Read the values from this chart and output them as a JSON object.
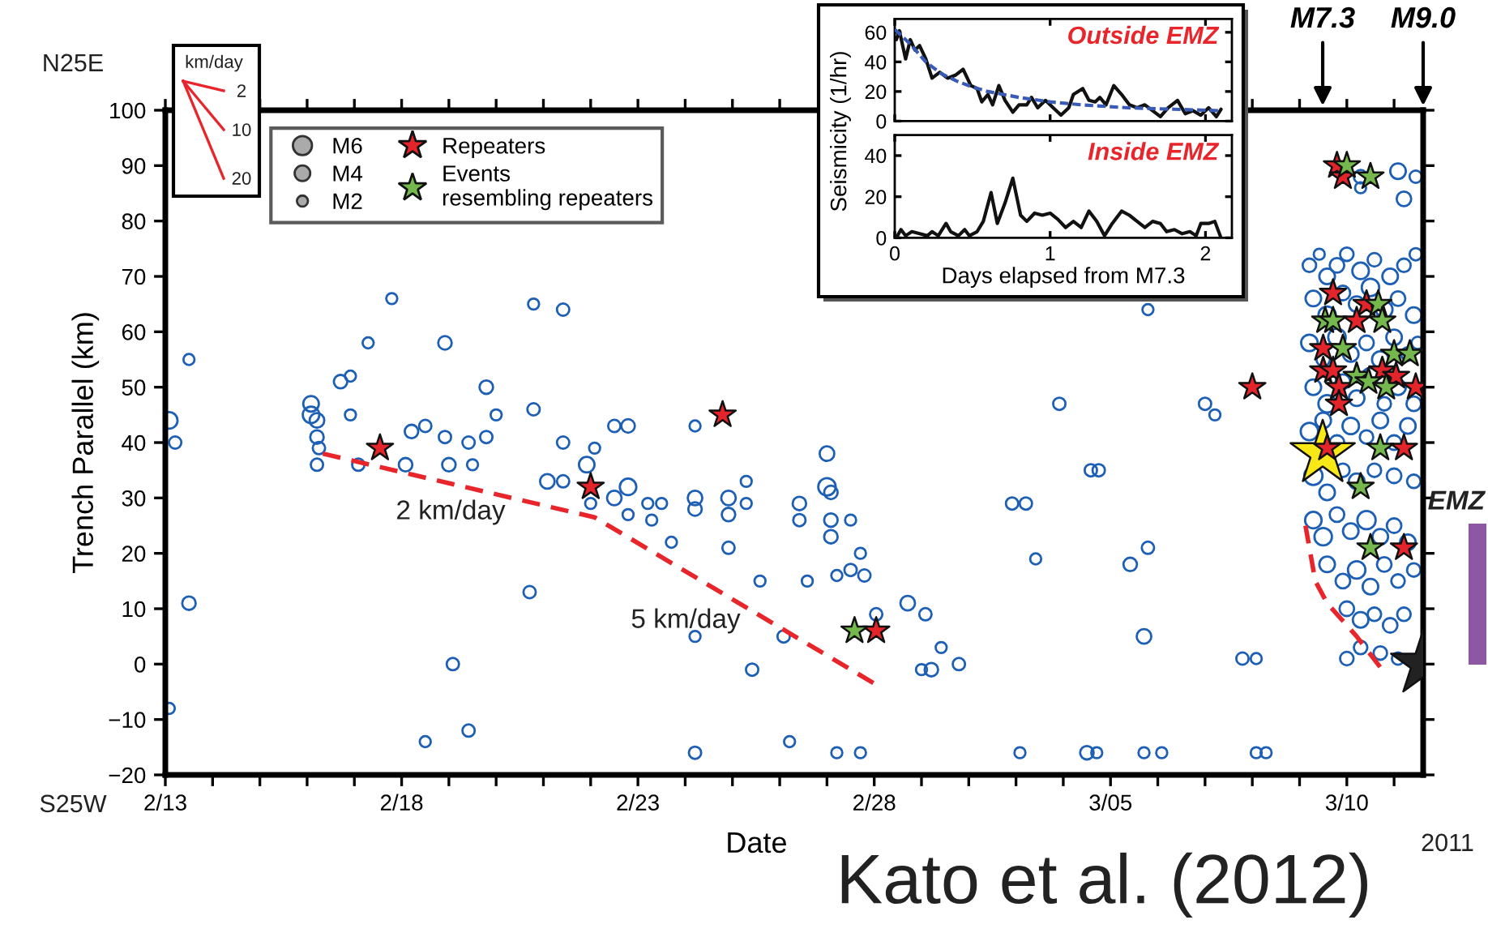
{
  "chart_data": [
    {
      "type": "scatter",
      "xlabel": "Date",
      "ylabel": "Trench Parallel (km)",
      "legend": "top left",
      "xlim": [
        "2011-02-13T00:00",
        "2011-03-11T14:46"
      ],
      "xticks": [
        {
          "value": "2011-02-13",
          "label": "2/13"
        },
        {
          "value": "2011-02-14",
          "label": null
        },
        {
          "value": "2011-02-15",
          "label": null
        },
        {
          "value": "2011-02-16",
          "label": null
        },
        {
          "value": "2011-02-17",
          "label": null
        },
        {
          "value": "2011-02-18",
          "label": "2/18"
        },
        {
          "value": "2011-02-19",
          "label": null
        },
        {
          "value": "2011-02-20",
          "label": null
        },
        {
          "value": "2011-02-21",
          "label": null
        },
        {
          "value": "2011-02-22",
          "label": null
        },
        {
          "value": "2011-02-23",
          "label": "2/23"
        },
        {
          "value": "2011-02-24",
          "label": null
        },
        {
          "value": "2011-02-25",
          "label": null
        },
        {
          "value": "2011-02-26",
          "label": null
        },
        {
          "value": "2011-02-27",
          "label": null
        },
        {
          "value": "2011-02-28",
          "label": "2/28"
        },
        {
          "value": "2011-03-01",
          "label": null
        },
        {
          "value": "2011-03-02",
          "label": null
        },
        {
          "value": "2011-03-03",
          "label": null
        },
        {
          "value": "2011-03-04",
          "label": null
        },
        {
          "value": "2011-03-05",
          "label": "3/05"
        },
        {
          "value": "2011-03-06",
          "label": null
        },
        {
          "value": "2011-03-07",
          "label": null
        },
        {
          "value": "2011-03-08",
          "label": null
        },
        {
          "value": "2011-03-09",
          "label": null
        },
        {
          "value": "2011-03-10",
          "label": "3/10"
        },
        {
          "value": "2011-03-11",
          "label": null
        }
      ],
      "ylim": [
        -20,
        100
      ],
      "yticks": [
        {
          "value": -20,
          "label": "−20"
        },
        {
          "value": -10,
          "label": "−10"
        },
        0,
        10,
        20,
        30,
        40,
        50,
        60,
        70,
        80,
        90,
        100
      ],
      "size_legend": [
        {
          "value": 6,
          "label": "M6"
        },
        {
          "value": 4,
          "label": "M4"
        },
        {
          "value": 2,
          "label": "M2"
        }
      ],
      "annotations": [
        "M7.3",
        "M9.0",
        "2 km/day",
        "5 km/day",
        "N25E",
        "S25W",
        "2011",
        "Kato et al. (2012)",
        "km/day",
        "2",
        "10",
        "20",
        "EMZ"
      ],
      "series": [
        {
          "type": "bubble",
          "marker": "circle",
          "color": "#1c5fb5",
          "x": [
            "2011-02-13T02:00",
            "2011-02-13T05:00",
            "2011-02-13T12:00",
            "2011-02-13T02:00",
            "2011-02-13T12:00",
            "2011-02-16T02:00",
            "2011-02-16T02:00",
            "2011-02-16T05:00",
            "2011-02-16T05:00",
            "2011-02-16T06:00",
            "2011-02-16T05:00",
            "2011-02-16T17:00",
            "2011-02-16T22:00",
            "2011-02-16T22:00",
            "2011-02-17T02:00",
            "2011-02-17T07:00",
            "2011-02-17T19:00",
            "2011-02-18T05:00",
            "2011-02-18T02:00",
            "2011-02-18T12:00",
            "2011-02-18T12:00",
            "2011-02-18T22:00",
            "2011-02-18T22:00",
            "2011-02-19T00:00",
            "2011-02-19T02:00",
            "2011-02-19T10:00",
            "2011-02-19T10:00",
            "2011-02-19T12:00",
            "2011-02-19T19:00",
            "2011-02-19T19:00",
            "2011-02-20T00:00",
            "2011-02-20T17:00",
            "2011-02-20T19:00",
            "2011-02-20T19:00",
            "2011-02-21T02:00",
            "2011-02-21T10:00",
            "2011-02-21T10:00",
            "2011-02-21T10:00",
            "2011-02-21T22:00",
            "2011-02-22T00:00",
            "2011-02-22T02:00",
            "2011-02-22T12:00",
            "2011-02-22T12:00",
            "2011-02-22T19:00",
            "2011-02-22T19:00",
            "2011-02-22T19:00",
            "2011-02-23T05:00",
            "2011-02-23T12:00",
            "2011-02-23T07:00",
            "2011-02-23T17:00",
            "2011-02-24T05:00",
            "2011-02-24T05:00",
            "2011-02-24T05:00",
            "2011-02-24T05:00",
            "2011-02-24T05:00",
            "2011-02-24T22:00",
            "2011-02-24T22:00",
            "2011-02-24T22:00",
            "2011-02-25T07:00",
            "2011-02-25T07:00",
            "2011-02-25T10:00",
            "2011-02-25T14:00",
            "2011-02-26T02:00",
            "2011-02-26T05:00",
            "2011-02-26T10:00",
            "2011-02-26T10:00",
            "2011-02-26T14:00",
            "2011-02-27T00:00",
            "2011-02-27T00:00",
            "2011-02-27T02:00",
            "2011-02-27T02:00",
            "2011-02-27T02:00",
            "2011-02-27T12:00",
            "2011-02-27T12:00",
            "2011-02-27T05:00",
            "2011-02-27T17:00",
            "2011-02-27T19:00",
            "2011-02-27T05:00",
            "2011-02-27T17:00",
            "2011-02-28T01:00",
            "2011-02-28T17:00",
            "2011-03-01T02:00",
            "2011-03-01T10:00",
            "2011-03-01T00:00",
            "2011-03-01T05:00",
            "2011-03-01T19:00",
            "2011-03-02T22:00",
            "2011-03-03T05:00",
            "2011-03-03T10:00",
            "2011-03-03T02:00",
            "2011-03-03T22:00",
            "2011-03-04T12:00",
            "2011-03-04T17:00",
            "2011-03-04T14:00",
            "2011-03-04T18:00",
            "2011-03-05T10:00",
            "2011-03-05T19:00",
            "2011-03-05T17:00",
            "2011-03-05T17:00",
            "2011-03-06T02:00",
            "2011-03-05T19:00",
            "2011-03-07T00:00",
            "2011-03-07T05:00",
            "2011-03-07T19:00",
            "2011-03-08T02:00",
            "2011-03-08T02:00",
            "2011-03-08T07:00",
            "2011-03-09T05:00",
            "2011-03-09T10:00",
            "2011-03-09T14:00",
            "2011-03-09T19:00",
            "2011-03-10T00:00",
            "2011-03-10T07:00",
            "2011-03-10T14:00",
            "2011-03-10T22:00",
            "2011-03-11T05:00",
            "2011-03-11T11:00",
            "2011-03-09T07:00",
            "2011-03-09T14:00",
            "2011-03-09T22:00",
            "2011-03-10T05:00",
            "2011-03-10T12:00",
            "2011-03-10T19:00",
            "2011-03-11T02:00",
            "2011-03-11T10:00",
            "2011-03-09T05:00",
            "2011-03-09T12:00",
            "2011-03-09T19:00",
            "2011-03-10T02:00",
            "2011-03-10T10:00",
            "2011-03-10T17:00",
            "2011-03-11T00:00",
            "2011-03-11T07:00",
            "2011-03-11T12:00",
            "2011-03-09T07:00",
            "2011-03-09T14:00",
            "2011-03-09T22:00",
            "2011-03-10T05:00",
            "2011-03-10T12:00",
            "2011-03-10T19:00",
            "2011-03-11T02:00",
            "2011-03-11T10:00",
            "2011-03-09T05:00",
            "2011-03-09T12:00",
            "2011-03-09T19:00",
            "2011-03-10T02:00",
            "2011-03-10T10:00",
            "2011-03-10T17:00",
            "2011-03-11T00:00",
            "2011-03-11T07:00",
            "2011-03-09T07:00",
            "2011-03-09T14:00",
            "2011-03-09T22:00",
            "2011-03-10T05:00",
            "2011-03-10T14:00",
            "2011-03-11T00:00",
            "2011-03-11T10:00",
            "2011-03-09T07:00",
            "2011-03-09T12:00",
            "2011-03-09T19:00",
            "2011-03-10T02:00",
            "2011-03-10T10:00",
            "2011-03-10T17:00",
            "2011-03-11T00:00",
            "2011-03-11T07:00",
            "2011-03-09T14:00",
            "2011-03-09T22:00",
            "2011-03-10T05:00",
            "2011-03-10T12:00",
            "2011-03-10T19:00",
            "2011-03-11T02:00",
            "2011-03-11T10:00",
            "2011-03-10T00:00",
            "2011-03-10T07:00",
            "2011-03-10T14:00",
            "2011-03-10T22:00",
            "2011-03-11T05:00",
            "2011-03-10T07:00",
            "2011-03-10T17:00",
            "2011-03-11T02:00",
            "2011-03-10T00:00",
            "2011-03-10T07:00",
            "2011-03-11T02:00",
            "2011-03-11T11:00",
            "2011-03-11T05:00",
            "2011-03-10T07:00"
          ],
          "values": [
            44,
            40,
            55,
            -8,
            11,
            45,
            47,
            44,
            41,
            39,
            36,
            51,
            52,
            45,
            36,
            58,
            66,
            42,
            36,
            -14,
            43,
            41,
            58,
            36,
            0,
            40,
            -12,
            36,
            50,
            41,
            45,
            13,
            65,
            46,
            33,
            64,
            40,
            33,
            36,
            29,
            39,
            43,
            30,
            43,
            32,
            27,
            29,
            29,
            26,
            22,
            43,
            30,
            28,
            5,
            -16,
            30,
            27,
            21,
            33,
            29,
            -1,
            15,
            5,
            -14,
            29,
            26,
            15,
            32,
            38,
            31,
            26,
            23,
            26,
            17,
            16,
            20,
            16,
            -16,
            -16,
            9,
            11,
            9,
            3,
            -1,
            -1,
            0,
            29,
            29,
            19,
            -16,
            47,
            -16,
            -16,
            35,
            35,
            18,
            21,
            5,
            -16,
            -16,
            64,
            47,
            45,
            1,
            1,
            -16,
            -16,
            72,
            74,
            70,
            72,
            74,
            71,
            73,
            70,
            72,
            74,
            66,
            63,
            67,
            65,
            68,
            64,
            66,
            63,
            58,
            55,
            59,
            56,
            58,
            55,
            59,
            56,
            58,
            50,
            47,
            51,
            48,
            52,
            47,
            50,
            47,
            42,
            44,
            40,
            43,
            41,
            44,
            40,
            43,
            34,
            31,
            35,
            33,
            35,
            34,
            33,
            26,
            23,
            27,
            24,
            26,
            23,
            25,
            22,
            18,
            15,
            17,
            14,
            18,
            15,
            17,
            10,
            8,
            9,
            7,
            9,
            3,
            2,
            1,
            1,
            86,
            89,
            88,
            84,
            88
          ],
          "sizes": [
            4.5,
            2.5,
            2,
            2,
            3,
            4.5,
            4,
            3.5,
            3,
            2.5,
            2.5,
            3,
            2,
            2,
            2.5,
            2,
            2,
            3,
            3,
            2,
            2.5,
            2.5,
            3,
            3,
            2.5,
            2.5,
            2.5,
            2,
            3,
            2.5,
            2,
            2.5,
            2,
            2.5,
            3.5,
            2.5,
            2.5,
            2.5,
            4,
            2,
            2,
            2.5,
            3.5,
            3,
            4.5,
            2,
            2,
            2,
            2,
            2,
            2,
            3.5,
            3,
            2,
            2.5,
            3.5,
            3,
            2.5,
            2,
            2,
            2.5,
            2,
            2.5,
            2,
            3,
            2.5,
            2,
            5,
            3.5,
            3,
            3,
            3,
            2,
            2.5,
            2,
            2,
            2.5,
            2,
            2,
            2.5,
            3.5,
            2.5,
            2,
            2,
            3,
            2.5,
            2.5,
            2.5,
            2,
            2,
            2.5,
            3,
            2,
            2.5,
            2.5,
            3,
            2.5,
            3.5,
            2,
            2,
            2,
            2.5,
            2,
            2.5,
            2,
            2,
            2,
            3,
            2,
            4,
            3.5,
            3,
            4.5,
            3,
            4,
            3,
            2.5,
            4,
            5,
            3.5,
            4,
            5,
            4.5,
            3.5,
            4,
            4.5,
            3,
            5,
            4,
            3.5,
            4.5,
            4,
            3,
            2.5,
            4,
            5,
            3.5,
            4,
            4.5,
            3,
            4,
            3.5,
            5,
            4,
            3.5,
            4.5,
            3,
            4,
            3.5,
            4,
            5.5,
            4,
            3,
            4,
            3,
            3.5,
            3,
            4.5,
            5,
            3.5,
            4,
            5.5,
            4,
            3.5,
            4,
            4,
            3.5,
            5,
            4,
            3.5,
            3,
            3,
            3.5,
            4,
            3,
            3.5,
            3,
            3,
            3,
            2.5,
            3,
            2,
            4,
            2.5,
            3.5,
            3
          ]
        },
        {
          "type": "scatter",
          "name": "Repeaters",
          "marker": "star",
          "color": "#e3242b",
          "x": [
            "2011-02-17T13:00",
            "2011-02-22T00:00",
            "2011-02-24T19:00",
            "2011-02-28T01:00",
            "2011-03-08T00:00",
            "2011-03-09T19:00",
            "2011-03-09T22:00",
            "2011-03-09T17:00",
            "2011-03-10T10:00",
            "2011-03-10T05:00",
            "2011-03-09T12:00",
            "2011-03-09T12:00",
            "2011-03-09T17:00",
            "2011-03-10T18:00",
            "2011-03-11T01:00",
            "2011-03-11T11:00",
            "2011-03-09T20:00",
            "2011-03-09T20:00",
            "2011-03-09T14:00",
            "2011-03-11T05:00",
            "2011-03-11T05:00"
          ],
          "values": [
            39,
            32,
            45,
            6,
            50,
            90,
            88,
            67,
            65,
            62,
            57,
            53,
            53,
            53,
            52,
            50,
            50,
            47,
            39,
            39,
            21
          ]
        },
        {
          "type": "scatter",
          "name": "Events\nresembling repeaters",
          "marker": "star",
          "color": "#74b84e",
          "x": [
            "2011-02-27T14:00",
            "2011-03-10T00:00",
            "2011-03-10T12:00",
            "2011-03-10T16:00",
            "2011-03-09T13:00",
            "2011-03-09T17:00",
            "2011-03-10T18:00",
            "2011-03-09T22:00",
            "2011-03-11T00:00",
            "2011-03-11T08:00",
            "2011-03-10T05:00",
            "2011-03-10T11:00",
            "2011-03-10T20:00",
            "2011-03-10T17:00",
            "2011-03-10T07:00",
            "2011-03-10T12:00"
          ],
          "values": [
            6,
            90,
            88,
            65,
            62,
            62,
            62,
            57,
            56,
            56,
            52,
            51,
            50,
            39,
            32,
            21
          ]
        },
        {
          "type": "scatter",
          "marker": "star",
          "color": "#f7e816",
          "x": [
            "2011-03-09T11:45"
          ],
          "values": [
            38
          ]
        },
        {
          "type": "scatter",
          "marker": "star",
          "color": "#222222",
          "x": [
            "2011-03-11T14:46"
          ],
          "values": [
            0
          ]
        },
        {
          "type": "line",
          "line_style": "dashed",
          "color": "#e8252b",
          "x": [
            "2011-02-16T08:00",
            "2011-02-22T02:00",
            "2011-02-28T00:00"
          ],
          "values": [
            38,
            26.5,
            -3.5
          ]
        },
        {
          "type": "line",
          "line_style": "dashed",
          "color": "#e8252b",
          "x": [
            "2011-03-09T03:00",
            "2011-03-09T08:00",
            "2011-03-09T14:00",
            "2011-03-10T05:00",
            "2011-03-10T19:00"
          ],
          "values": [
            25,
            15,
            11,
            5,
            -1.5
          ]
        }
      ]
    },
    {
      "type": "line",
      "ylabel": "Seismicity (1/hr)",
      "xlim": [
        0,
        2.17
      ],
      "xticks": [
        0,
        1,
        2
      ],
      "ylim": [
        0,
        69
      ],
      "yticks": [
        0,
        20,
        40,
        60
      ],
      "tick_labels": "y",
      "annotations": [
        "Outside EMZ"
      ],
      "series": [
        {
          "color": "#111111",
          "x": [
            0.01,
            0.03,
            0.07,
            0.1,
            0.13,
            0.16,
            0.2,
            0.24,
            0.29,
            0.34,
            0.39,
            0.44,
            0.49,
            0.53,
            0.56,
            0.6,
            0.63,
            0.67,
            0.71,
            0.76,
            0.8,
            0.85,
            0.88,
            0.92,
            0.97,
            1.02,
            1.07,
            1.12,
            1.15,
            1.21,
            1.25,
            1.29,
            1.32,
            1.36,
            1.41,
            1.46,
            1.51,
            1.56,
            1.61,
            1.66,
            1.71,
            1.76,
            1.82,
            1.87,
            1.92,
            1.97,
            2.02,
            2.07,
            2.1
          ],
          "values": [
            55,
            61,
            42,
            55,
            48,
            51,
            42,
            29,
            33,
            29,
            31,
            35,
            24,
            22,
            13,
            18,
            11,
            24,
            14,
            6,
            11,
            11,
            16,
            9,
            14,
            9,
            4,
            9,
            18,
            22,
            14,
            13,
            16,
            11,
            24,
            18,
            11,
            9,
            11,
            7,
            3,
            9,
            14,
            5,
            7,
            4,
            9,
            3,
            8
          ]
        },
        {
          "color": "#3a5bb5",
          "line_style": "dashed",
          "x": [
            0,
            0.1,
            0.2,
            0.3,
            0.4,
            0.5,
            0.6,
            0.8,
            1.0,
            1.2,
            1.5,
            1.8,
            2.1
          ],
          "values": [
            62,
            52,
            40,
            32,
            27,
            23,
            20,
            16,
            13,
            11,
            9,
            8,
            7
          ]
        }
      ]
    },
    {
      "type": "line",
      "xlabel": "Days elapsed from M7.3",
      "xlim": [
        0,
        2.17
      ],
      "xticks": [
        0,
        1,
        2
      ],
      "ylim": [
        0,
        50
      ],
      "yticks": [
        0,
        20,
        40
      ],
      "annotations": [
        "Inside EMZ"
      ],
      "series": [
        {
          "color": "#111111",
          "x": [
            0.01,
            0.04,
            0.07,
            0.11,
            0.16,
            0.21,
            0.24,
            0.28,
            0.33,
            0.36,
            0.41,
            0.45,
            0.48,
            0.53,
            0.57,
            0.62,
            0.66,
            0.71,
            0.76,
            0.81,
            0.85,
            0.9,
            0.95,
            1.0,
            1.05,
            1.1,
            1.15,
            1.2,
            1.25,
            1.3,
            1.35,
            1.4,
            1.46,
            1.51,
            1.56,
            1.61,
            1.66,
            1.71,
            1.75,
            1.8,
            1.85,
            1.9,
            1.94,
            1.97,
            2.02,
            2.06,
            2.1
          ],
          "values": [
            0,
            4,
            1,
            3,
            2,
            1,
            3,
            1,
            7,
            3,
            1,
            4,
            1,
            3,
            8,
            22,
            7,
            17,
            29,
            11,
            8,
            12,
            11,
            12,
            9,
            5,
            8,
            5,
            13,
            8,
            1,
            7,
            13,
            11,
            8,
            5,
            8,
            7,
            3,
            4,
            2,
            3,
            1,
            7,
            7,
            8,
            0
          ]
        }
      ]
    }
  ]
}
